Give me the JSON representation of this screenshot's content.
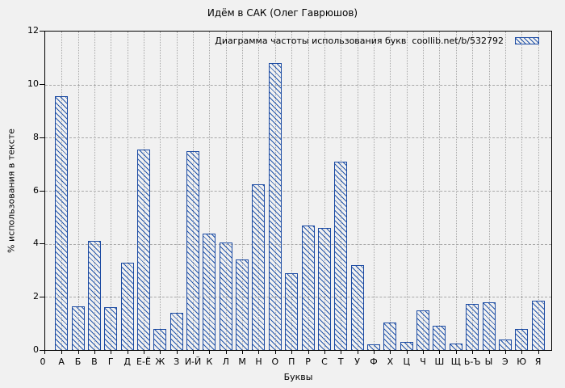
{
  "chart_data": {
    "type": "bar",
    "title": "Идём в САК (Олег Гаврюшов)",
    "legend": "Диаграмма частоты использования букв  coollib.net/b/532792",
    "legend_position": "top-right",
    "xlabel": "Буквы",
    "ylabel": "% использования в тексте",
    "origin_label": "0",
    "ylim": [
      0,
      12
    ],
    "yticks": [
      0,
      2,
      4,
      6,
      8,
      10,
      12
    ],
    "grid": true,
    "bar_style": "hatched-diagonal",
    "categories": [
      "А",
      "Б",
      "В",
      "Г",
      "Д",
      "Е-Ё",
      "Ж",
      "З",
      "И-Й",
      "К",
      "Л",
      "М",
      "Н",
      "О",
      "П",
      "Р",
      "С",
      "Т",
      "У",
      "Ф",
      "Х",
      "Ц",
      "Ч",
      "Ш",
      "Щ",
      "Ь-Ъ",
      "Ы",
      "Э",
      "Ю",
      "Я"
    ],
    "values": [
      9.55,
      1.65,
      4.1,
      1.6,
      3.3,
      7.55,
      0.8,
      1.4,
      7.5,
      4.4,
      4.05,
      3.4,
      6.25,
      10.8,
      2.9,
      4.7,
      4.6,
      7.1,
      3.2,
      0.2,
      1.05,
      0.3,
      1.5,
      0.9,
      0.25,
      1.75,
      1.8,
      0.4,
      0.8,
      1.85
    ]
  },
  "colors": {
    "background": "#f1f1f1",
    "bar_border": "#1b4aa2",
    "bar_hatch": "#2355aa",
    "grid": "#a8a8a8",
    "frame": "#000000",
    "text": "#000000"
  }
}
